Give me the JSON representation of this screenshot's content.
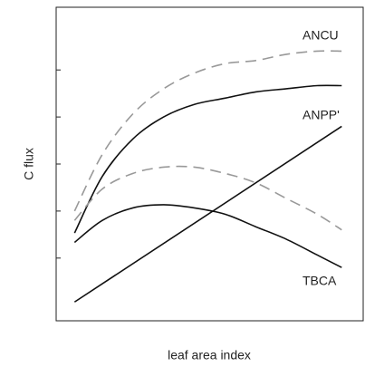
{
  "chart_data": {
    "type": "line",
    "xlabel": "leaf area index",
    "ylabel": "C flux",
    "xlim": [
      0,
      10
    ],
    "ylim": [
      0,
      10
    ],
    "yticks": [
      2,
      3.5,
      5,
      6.5,
      8
    ],
    "annotations": [
      "ANCU",
      "ANPP'",
      "TBCA"
    ],
    "series": [
      {
        "color": "#999999",
        "dashed": true,
        "x": [
          0.6,
          1.5,
          2.5,
          3.5,
          4.5,
          5.5,
          6.5,
          7.5,
          8.5,
          9.3
        ],
        "values": [
          3.5,
          5.3,
          6.6,
          7.4,
          7.9,
          8.2,
          8.3,
          8.5,
          8.6,
          8.6
        ]
      },
      {
        "color": "#111111",
        "dashed": false,
        "x": [
          0.6,
          1.5,
          2.5,
          3.5,
          4.5,
          5.5,
          6.5,
          7.5,
          8.5,
          9.3
        ],
        "values": [
          2.8,
          4.6,
          5.8,
          6.5,
          6.9,
          7.1,
          7.3,
          7.4,
          7.5,
          7.5
        ]
      },
      {
        "color": "#999999",
        "dashed": true,
        "x": [
          0.6,
          1.5,
          2.5,
          3.5,
          4.5,
          5.5,
          6.5,
          7.5,
          8.5,
          9.3
        ],
        "values": [
          3.2,
          4.2,
          4.7,
          4.9,
          4.9,
          4.7,
          4.4,
          3.9,
          3.4,
          2.9
        ]
      },
      {
        "color": "#111111",
        "dashed": false,
        "x": [
          0.6,
          1.5,
          2.5,
          3.5,
          4.5,
          5.5,
          6.5,
          7.5,
          8.5,
          9.3
        ],
        "values": [
          2.5,
          3.2,
          3.6,
          3.7,
          3.6,
          3.4,
          3.0,
          2.6,
          2.1,
          1.7
        ]
      },
      {
        "color": "#111111",
        "dashed": false,
        "x": [
          0.6,
          9.3
        ],
        "values": [
          0.6,
          6.2
        ]
      }
    ]
  }
}
